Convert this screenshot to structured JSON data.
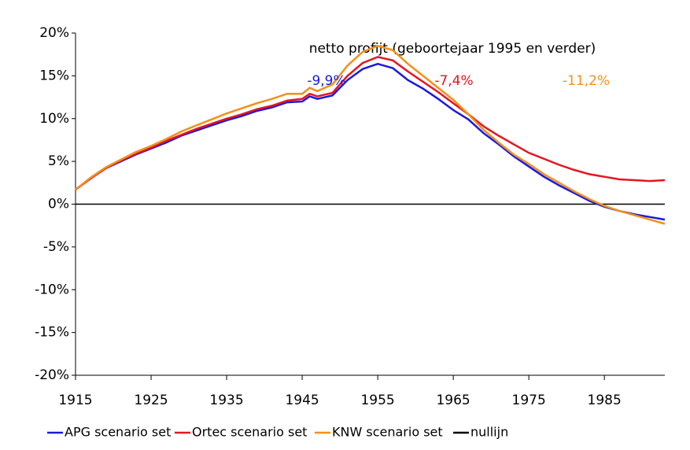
{
  "chart_data": {
    "type": "line",
    "title": "netto profijt  (geboortejaar 1995 en verder)",
    "annotations": [
      {
        "text": "-9,9%",
        "color": "#1a1adc"
      },
      {
        "text": "-7,4%",
        "color": "#e8141e"
      },
      {
        "text": "-11,2%",
        "color": "#f39019"
      }
    ],
    "x": [
      1915,
      1917,
      1919,
      1921,
      1923,
      1925,
      1927,
      1929,
      1931,
      1933,
      1935,
      1937,
      1939,
      1941,
      1943,
      1945,
      1946,
      1947,
      1949,
      1951,
      1953,
      1955,
      1957,
      1959,
      1961,
      1963,
      1965,
      1967,
      1969,
      1971,
      1973,
      1975,
      1977,
      1979,
      1981,
      1983,
      1985,
      1987,
      1989,
      1991,
      1993
    ],
    "series": [
      {
        "name": "APG scenario set",
        "color": "#1a1adc",
        "values": [
          1.7,
          3.0,
          4.2,
          5.0,
          5.8,
          6.5,
          7.2,
          8.0,
          8.6,
          9.2,
          9.8,
          10.3,
          10.9,
          11.3,
          11.9,
          12.0,
          12.6,
          12.3,
          12.7,
          14.5,
          15.8,
          16.4,
          15.9,
          14.5,
          13.5,
          12.3,
          11.0,
          9.9,
          8.3,
          7.0,
          5.6,
          4.4,
          3.2,
          2.2,
          1.3,
          0.4,
          -0.3,
          -0.8,
          -1.2,
          -1.5,
          -1.8
        ]
      },
      {
        "name": "Ortec scenario set",
        "color": "#e8141e",
        "values": [
          1.7,
          3.0,
          4.2,
          5.1,
          5.9,
          6.6,
          7.4,
          8.1,
          8.8,
          9.4,
          10.0,
          10.5,
          11.1,
          11.5,
          12.1,
          12.3,
          12.9,
          12.6,
          13.0,
          15.0,
          16.5,
          17.2,
          16.8,
          15.5,
          14.3,
          13.1,
          11.8,
          10.5,
          9.1,
          8.0,
          7.0,
          6.0,
          5.3,
          4.6,
          4.0,
          3.5,
          3.2,
          2.9,
          2.8,
          2.7,
          2.8
        ]
      },
      {
        "name": "KNW scenario set",
        "color": "#f39019",
        "values": [
          1.7,
          3.1,
          4.3,
          5.2,
          6.1,
          6.8,
          7.6,
          8.5,
          9.2,
          9.9,
          10.6,
          11.2,
          11.8,
          12.3,
          12.9,
          12.9,
          13.6,
          13.2,
          14.0,
          16.2,
          17.8,
          18.5,
          18.0,
          16.4,
          15.0,
          13.6,
          12.2,
          10.5,
          8.7,
          7.2,
          5.8,
          4.7,
          3.5,
          2.5,
          1.5,
          0.6,
          -0.2,
          -0.8,
          -1.3,
          -1.8,
          -2.3
        ]
      },
      {
        "name": "nullijn",
        "color": "#000000",
        "values": [
          0,
          0,
          0,
          0,
          0,
          0,
          0,
          0,
          0,
          0,
          0,
          0,
          0,
          0,
          0,
          0,
          0,
          0,
          0,
          0,
          0,
          0,
          0,
          0,
          0,
          0,
          0,
          0,
          0,
          0,
          0,
          0,
          0,
          0,
          0,
          0,
          0,
          0,
          0,
          0,
          0
        ]
      }
    ],
    "xlim": [
      1915,
      1993
    ],
    "xticks": [
      1915,
      1925,
      1935,
      1945,
      1955,
      1965,
      1975,
      1985
    ],
    "ylim": [
      -20,
      20
    ],
    "yticks": [
      {
        "value": -20,
        "label": "-20%"
      },
      {
        "value": -15,
        "label": "-15%"
      },
      {
        "value": -10,
        "label": "-10%"
      },
      {
        "value": -5,
        "label": "-5%"
      },
      {
        "value": 0,
        "label": "0%"
      },
      {
        "value": 5,
        "label": "5%"
      },
      {
        "value": 10,
        "label": "10%"
      },
      {
        "value": 15,
        "label": "15%"
      },
      {
        "value": 20,
        "label": "20%"
      }
    ],
    "legend": "bottom"
  }
}
